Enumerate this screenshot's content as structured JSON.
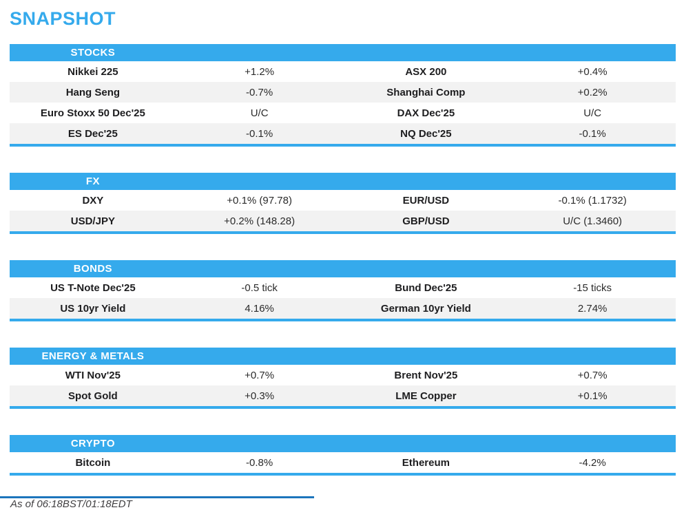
{
  "page_title": "SNAPSHOT",
  "colors": {
    "accent_blue": "#35AAEC",
    "row_alt_gray": "#F2F2F2",
    "bottom_rule_navy": "#1C75BC"
  },
  "sections": [
    {
      "title": "STOCKS",
      "rows": [
        {
          "left_name": "Nikkei 225",
          "left_value": "+1.2%",
          "right_name": "ASX 200",
          "right_value": "+0.4%"
        },
        {
          "left_name": "Hang Seng",
          "left_value": "-0.7%",
          "right_name": "Shanghai Comp",
          "right_value": "+0.2%"
        },
        {
          "left_name": "Euro Stoxx 50 Dec'25",
          "left_value": "U/C",
          "right_name": "DAX Dec'25",
          "right_value": "U/C"
        },
        {
          "left_name": "ES Dec'25",
          "left_value": "-0.1%",
          "right_name": "NQ Dec'25",
          "right_value": "-0.1%"
        }
      ]
    },
    {
      "title": "FX",
      "rows": [
        {
          "left_name": "DXY",
          "left_value": "+0.1% (97.78)",
          "right_name": "EUR/USD",
          "right_value": "-0.1% (1.1732)"
        },
        {
          "left_name": "USD/JPY",
          "left_value": "+0.2% (148.28)",
          "right_name": "GBP/USD",
          "right_value": "U/C (1.3460)"
        }
      ]
    },
    {
      "title": "BONDS",
      "rows": [
        {
          "left_name": "US T-Note Dec'25",
          "left_value": "-0.5 tick",
          "right_name": "Bund Dec'25",
          "right_value": "-15 ticks"
        },
        {
          "left_name": "US 10yr Yield",
          "left_value": "4.16%",
          "right_name": "German 10yr Yield",
          "right_value": "2.74%"
        }
      ]
    },
    {
      "title": "ENERGY & METALS",
      "rows": [
        {
          "left_name": "WTI Nov'25",
          "left_value": "+0.7%",
          "right_name": "Brent Nov'25",
          "right_value": "+0.7%"
        },
        {
          "left_name": "Spot Gold",
          "left_value": "+0.3%",
          "right_name": "LME Copper",
          "right_value": "+0.1%"
        }
      ]
    },
    {
      "title": "CRYPTO",
      "rows": [
        {
          "left_name": "Bitcoin",
          "left_value": "-0.8%",
          "right_name": "Ethereum",
          "right_value": "-4.2%"
        }
      ]
    }
  ],
  "footer": {
    "as_of": "As of 06:18BST/01:18EDT"
  }
}
